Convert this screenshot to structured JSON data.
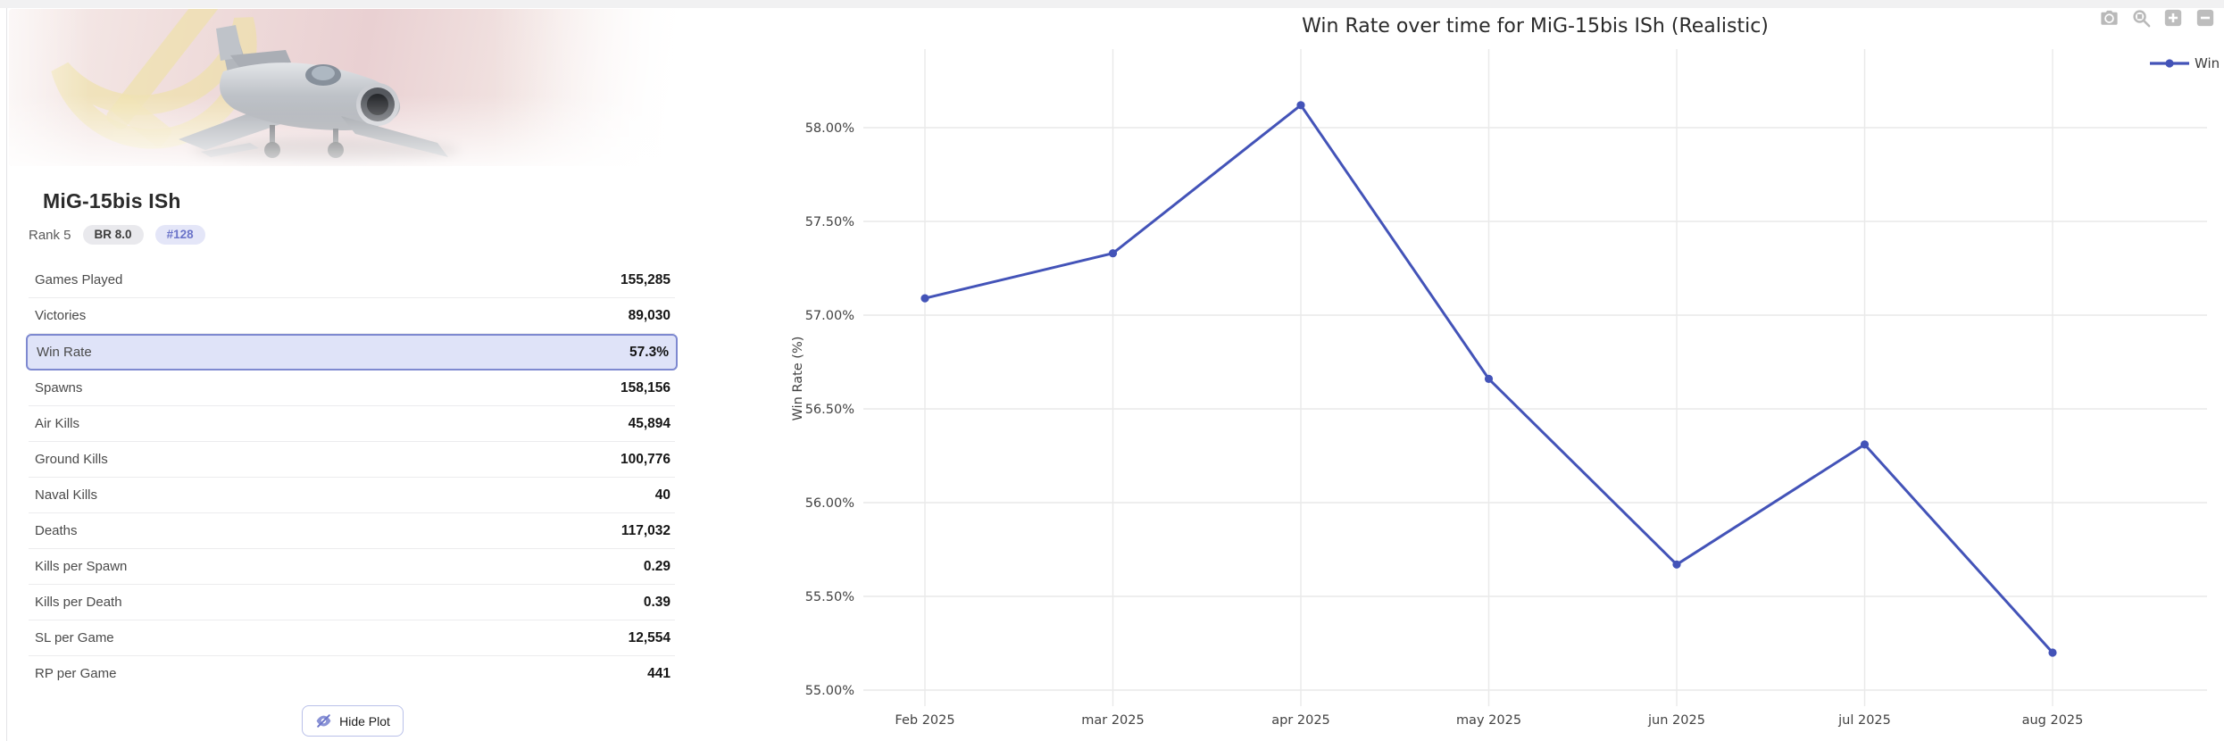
{
  "vehicle": {
    "name": "MiG-15bis ISh",
    "rank_label": "Rank 5",
    "br_badge": "BR 8.0",
    "position_badge": "#128",
    "image": "mig-15-on-soviet-flag-artwork"
  },
  "stats": {
    "rows": [
      {
        "label": "Games Played",
        "value": "155,285",
        "highlight": false
      },
      {
        "label": "Victories",
        "value": "89,030",
        "highlight": false
      },
      {
        "label": "Win Rate",
        "value": "57.3%",
        "highlight": true
      },
      {
        "label": "Spawns",
        "value": "158,156",
        "highlight": false
      },
      {
        "label": "Air Kills",
        "value": "45,894",
        "highlight": false
      },
      {
        "label": "Ground Kills",
        "value": "100,776",
        "highlight": false
      },
      {
        "label": "Naval Kills",
        "value": "40",
        "highlight": false
      },
      {
        "label": "Deaths",
        "value": "117,032",
        "highlight": false
      },
      {
        "label": "Kills per Spawn",
        "value": "0.29",
        "highlight": false
      },
      {
        "label": "Kills per Death",
        "value": "0.39",
        "highlight": false
      },
      {
        "label": "SL per Game",
        "value": "12,554",
        "highlight": false
      },
      {
        "label": "RP per Game",
        "value": "441",
        "highlight": false
      }
    ],
    "hide_plot_label": "Hide Plot"
  },
  "chart": {
    "title": "Win Rate over time for MiG-15bis ISh (Realistic)",
    "toolbar_icons": [
      "camera-icon",
      "zoom-icon",
      "zoom-in-icon",
      "zoom-out-icon",
      "autoscale-icon"
    ]
  },
  "chart_data": {
    "type": "line",
    "title": "Win Rate over time for MiG-15bis ISh (Realistic)",
    "x": [
      "Feb 2025",
      "mar 2025",
      "apr 2025",
      "may 2025",
      "jun 2025",
      "jul 2025",
      "aug 2025"
    ],
    "series": [
      {
        "name": "Win Rate",
        "values": [
          57.09,
          57.33,
          58.12,
          56.66,
          55.67,
          56.31,
          55.2
        ]
      }
    ],
    "xlabel": "",
    "ylabel": "Win Rate (%)",
    "yticks": [
      "58.00%",
      "57.50%",
      "57.00%",
      "56.50%",
      "56.00%",
      "55.50%",
      "55.00%"
    ],
    "ylim": [
      54.91,
      58.42
    ],
    "grid": true,
    "legend_position": "right",
    "line_color": "#4353b8"
  },
  "colors": {
    "accent": "#4353b8",
    "highlight_bg": "#dfe3f8",
    "highlight_border": "#7e89d0",
    "pill_gray_bg": "#e9e9ed",
    "pill_purple_bg": "#e4e6f8",
    "pill_purple_text": "#6b74c9",
    "divider": "#ececee",
    "gridline": "#e9e9e9",
    "tick_text": "#424242",
    "modebar_icon": "#b9b9b9"
  }
}
